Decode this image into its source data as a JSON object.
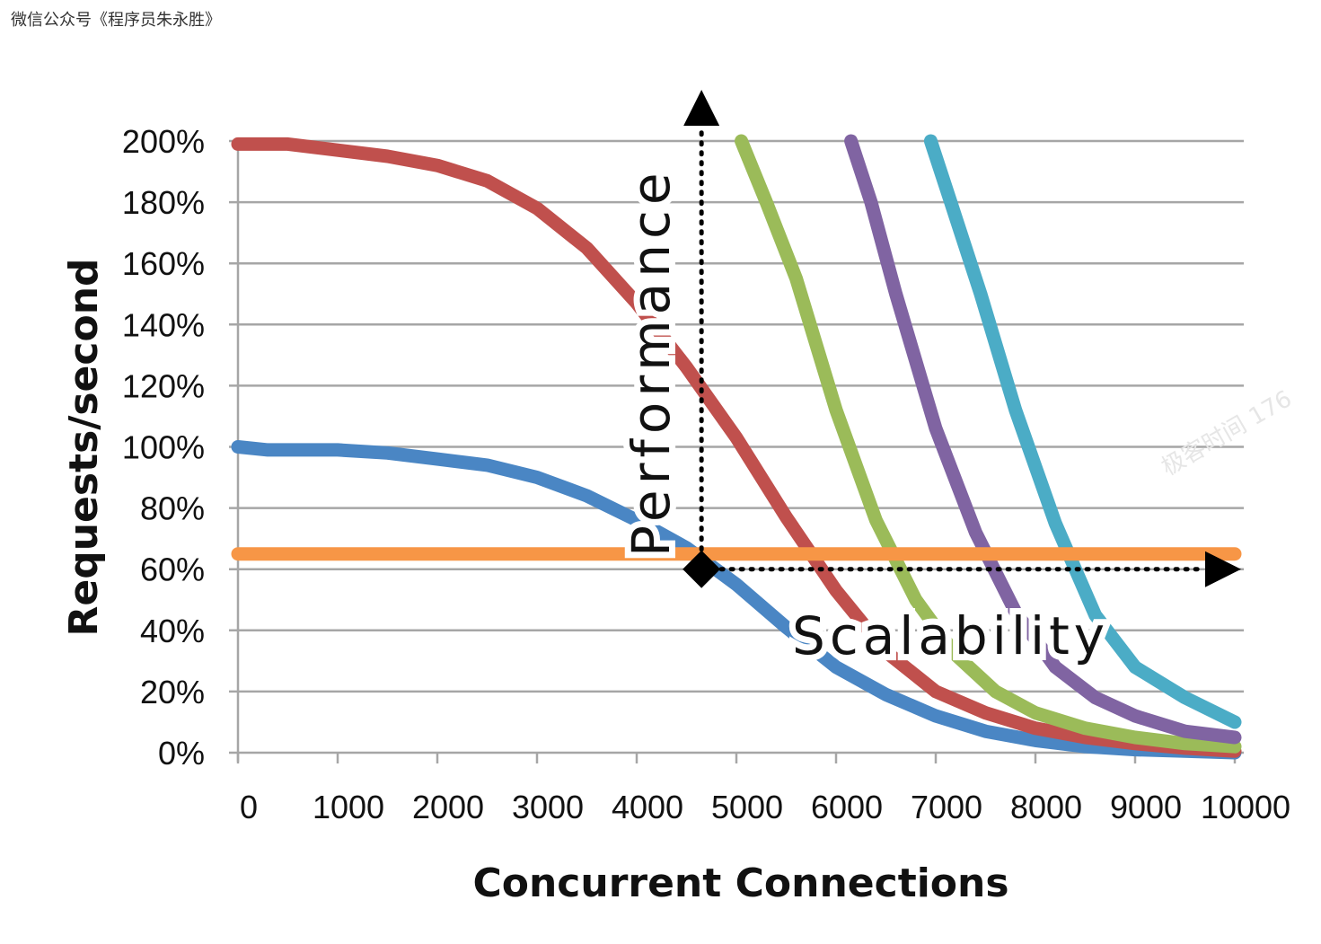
{
  "header_caption": "微信公众号《程序员朱永胜》",
  "watermark": "极客时间 176",
  "chart_data": {
    "type": "line",
    "title": "",
    "xlabel": "Concurrent Connections",
    "ylabel": "Requests/second",
    "xlim": [
      0,
      10000
    ],
    "ylim": [
      0,
      200
    ],
    "x_ticks": [
      "0",
      "1000",
      "2000",
      "3000",
      "4000",
      "5000",
      "6000",
      "7000",
      "8000",
      "9000",
      "10000"
    ],
    "y_ticks": [
      "0%",
      "20%",
      "40%",
      "60%",
      "80%",
      "100%",
      "120%",
      "140%",
      "160%",
      "180%",
      "200%"
    ],
    "grid": true,
    "series": [
      {
        "name": "blue",
        "color": "#4a86c4",
        "points": [
          [
            0,
            100
          ],
          [
            300,
            99
          ],
          [
            1000,
            99
          ],
          [
            1500,
            98
          ],
          [
            2000,
            96
          ],
          [
            2500,
            94
          ],
          [
            3000,
            90
          ],
          [
            3500,
            84
          ],
          [
            4000,
            76
          ],
          [
            4500,
            67
          ],
          [
            5000,
            55
          ],
          [
            5500,
            41
          ],
          [
            6000,
            28
          ],
          [
            6500,
            19
          ],
          [
            7000,
            12
          ],
          [
            7500,
            7
          ],
          [
            8000,
            4
          ],
          [
            8500,
            2
          ],
          [
            9000,
            1
          ],
          [
            9500,
            0.5
          ],
          [
            10000,
            0
          ]
        ]
      },
      {
        "name": "red",
        "color": "#c0504d",
        "points": [
          [
            0,
            199
          ],
          [
            500,
            199
          ],
          [
            1000,
            197
          ],
          [
            1500,
            195
          ],
          [
            2000,
            192
          ],
          [
            2500,
            187
          ],
          [
            3000,
            178
          ],
          [
            3500,
            165
          ],
          [
            4000,
            147
          ],
          [
            4500,
            126
          ],
          [
            5000,
            103
          ],
          [
            5500,
            77
          ],
          [
            6000,
            53
          ],
          [
            6500,
            33
          ],
          [
            7000,
            20
          ],
          [
            7500,
            13
          ],
          [
            8000,
            8
          ],
          [
            8500,
            5
          ],
          [
            9000,
            3
          ],
          [
            9500,
            1.5
          ],
          [
            10000,
            0.5
          ]
        ]
      },
      {
        "name": "green",
        "color": "#9bbb59",
        "points": [
          [
            5050,
            200
          ],
          [
            5300,
            180
          ],
          [
            5600,
            155
          ],
          [
            6000,
            112
          ],
          [
            6400,
            76
          ],
          [
            6800,
            50
          ],
          [
            7200,
            32
          ],
          [
            7600,
            20
          ],
          [
            8000,
            13
          ],
          [
            8500,
            8
          ],
          [
            9000,
            5
          ],
          [
            9500,
            3
          ],
          [
            10000,
            2
          ]
        ]
      },
      {
        "name": "purple",
        "color": "#8064a2",
        "points": [
          [
            6150,
            200
          ],
          [
            6350,
            180
          ],
          [
            6600,
            150
          ],
          [
            7000,
            106
          ],
          [
            7400,
            72
          ],
          [
            7800,
            46
          ],
          [
            8200,
            28
          ],
          [
            8600,
            18
          ],
          [
            9000,
            12
          ],
          [
            9500,
            7
          ],
          [
            10000,
            5
          ]
        ]
      },
      {
        "name": "teal",
        "color": "#4bacc6",
        "points": [
          [
            6950,
            200
          ],
          [
            7150,
            180
          ],
          [
            7450,
            150
          ],
          [
            7800,
            112
          ],
          [
            8200,
            75
          ],
          [
            8600,
            45
          ],
          [
            9000,
            28
          ],
          [
            9500,
            18
          ],
          [
            10000,
            10
          ]
        ]
      },
      {
        "name": "orange",
        "color": "#f79646",
        "points": [
          [
            0,
            65
          ],
          [
            10000,
            65
          ]
        ]
      }
    ],
    "annotations": [
      {
        "text": "Performance",
        "orientation": "vertical",
        "anchor_x": 4650,
        "anchor_y": 60,
        "arrow": "up"
      },
      {
        "text": "Scalability",
        "orientation": "horizontal",
        "anchor_x": 4650,
        "anchor_y": 60,
        "arrow": "right"
      }
    ]
  }
}
